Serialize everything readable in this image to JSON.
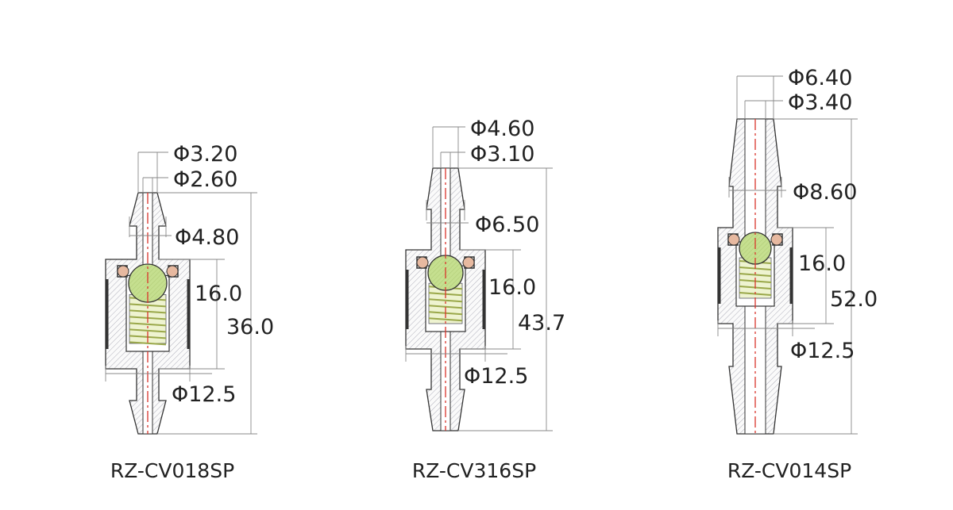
{
  "colors": {
    "hatch": "#9a9aa6",
    "centerline": "#d9342b",
    "ball": "#c5df8f",
    "spring": "#d8e39a",
    "oring": "#e7b9a0",
    "dimension": "#888888"
  },
  "valves": [
    {
      "model": "RZ-CV018SP",
      "labels": {
        "outer_tip": "Φ3.20",
        "bore": "Φ2.60",
        "barb": "Φ4.80",
        "chamber": "16.0",
        "total": "36.0",
        "body": "Φ12.5"
      }
    },
    {
      "model": "RZ-CV316SP",
      "labels": {
        "outer_tip": "Φ4.60",
        "bore": "Φ3.10",
        "barb": "Φ6.50",
        "chamber": "16.0",
        "total": "43.7",
        "body": "Φ12.5"
      }
    },
    {
      "model": "RZ-CV014SP",
      "labels": {
        "outer_tip": "Φ6.40",
        "bore": "Φ3.40",
        "barb": "Φ8.60",
        "chamber": "16.0",
        "total": "52.0",
        "body": "Φ12.5"
      }
    }
  ]
}
